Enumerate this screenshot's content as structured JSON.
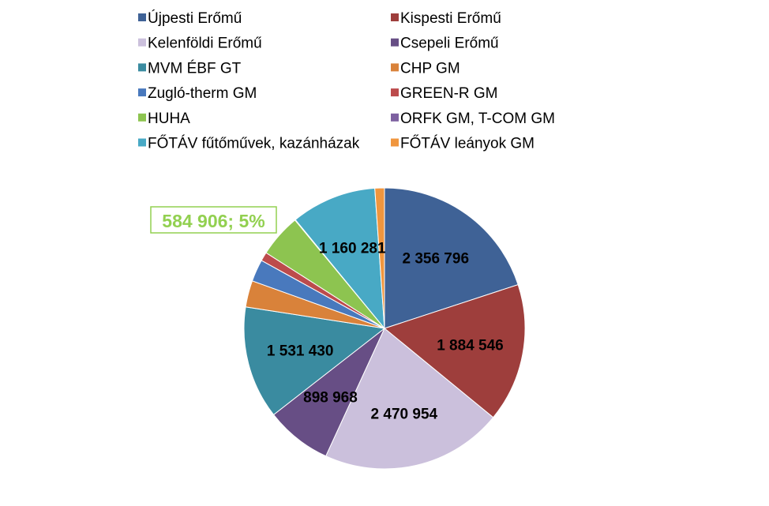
{
  "chart_data": {
    "type": "pie",
    "title": "",
    "slices": [
      {
        "name": "Újpesti Erőmű",
        "value": 2356796,
        "label": "2 356 796",
        "color": "#3F6296"
      },
      {
        "name": "Kispesti Erőmű",
        "value": 1884546,
        "label": "1 884 546",
        "color": "#9E3E3C"
      },
      {
        "name": "Kelenföldi Erőmű",
        "value": 2470954,
        "label": "2 470 954",
        "color": "#CBC0DC"
      },
      {
        "name": "Csepeli Erőmű",
        "value": 898968,
        "label": "898 968",
        "color": "#674E85"
      },
      {
        "name": "MVM ÉBF GT",
        "value": 1531430,
        "label": "1 531 430",
        "color": "#3A8BA0"
      },
      {
        "name": "CHP GM",
        "value": 360000,
        "label": "",
        "color": "#D9823A"
      },
      {
        "name": "Zugló-therm GM",
        "value": 300000,
        "label": "",
        "color": "#4979BD"
      },
      {
        "name": "GREEN-R GM",
        "value": 120000,
        "label": "",
        "color": "#BC4B4C"
      },
      {
        "name": "HUHA",
        "value": 584906,
        "label": "584 906; 5%",
        "color": "#8DC450"
      },
      {
        "name": "ORFK GM, T-COM GM",
        "value": 8000,
        "label": "",
        "color": "#7D60A0"
      },
      {
        "name": "FŐTÁV fűtőművek, kazánházak",
        "value": 1160281,
        "label": "1 160 281",
        "color": "#48A9C5"
      },
      {
        "name": "FŐTÁV leányok GM",
        "value": 130000,
        "label": "",
        "color": "#F0963E"
      }
    ],
    "legend_position": "top",
    "callout": {
      "slice": "HUHA",
      "text": "584 906; 5%",
      "color": "#92D050"
    }
  }
}
